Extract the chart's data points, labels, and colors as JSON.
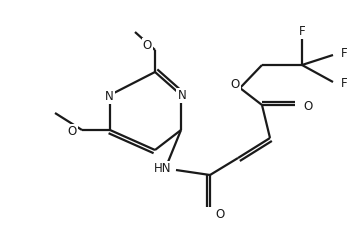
{
  "bg_color": "#ffffff",
  "line_color": "#1a1a1a",
  "line_width": 1.6,
  "font_size": 8.5,
  "figsize": [
    3.5,
    2.29
  ],
  "dpi": 100,
  "xlim": [
    0,
    350
  ],
  "ylim": [
    0,
    229
  ]
}
